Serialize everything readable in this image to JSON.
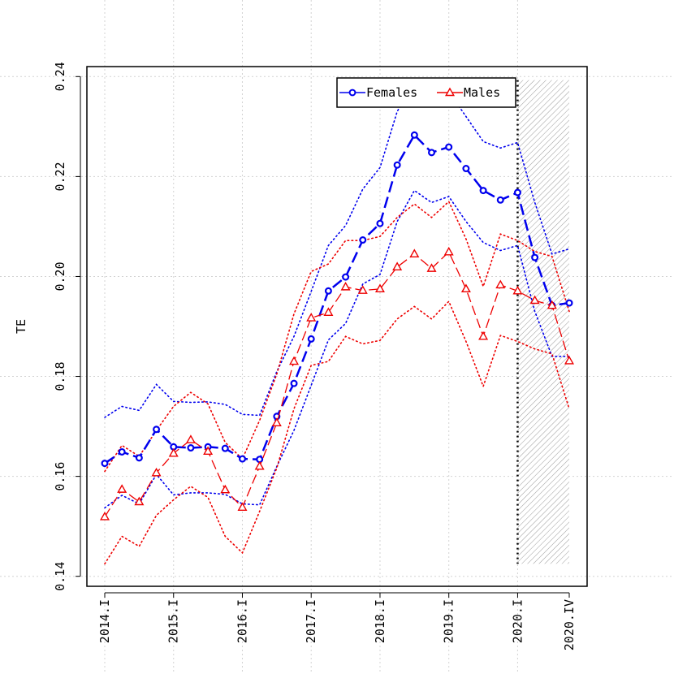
{
  "chart_data": {
    "type": "line",
    "title": "",
    "xlabel": "",
    "ylabel": "TE",
    "ylim": [
      0.138,
      0.242
    ],
    "yticks": [
      0.14,
      0.16,
      0.18,
      0.2,
      0.22,
      0.24
    ],
    "ytick_labels": [
      "0.14",
      "0.16",
      "0.18",
      "0.20",
      "0.22",
      "0.24"
    ],
    "x": [
      "2014.I",
      "2014.II",
      "2014.III",
      "2014.IV",
      "2015.I",
      "2015.II",
      "2015.III",
      "2015.IV",
      "2016.I",
      "2016.II",
      "2016.III",
      "2016.IV",
      "2017.I",
      "2017.II",
      "2017.III",
      "2017.IV",
      "2018.I",
      "2018.II",
      "2018.III",
      "2018.IV",
      "2019.I",
      "2019.II",
      "2019.III",
      "2019.IV",
      "2020.I",
      "2020.II",
      "2020.III",
      "2020.IV"
    ],
    "xtick_labels": [
      "2014.I",
      "2015.I",
      "2016.I",
      "2017.I",
      "2018.I",
      "2019.I",
      "2020.I",
      "2020.IV"
    ],
    "grid": true,
    "legend_position": "top-center",
    "forecast_start": "2020.I",
    "forecast_band": [
      0.1425,
      0.2393
    ],
    "series": [
      {
        "name": "Females",
        "color": "#0000ee",
        "marker": "circle",
        "values": [
          0.1626,
          0.1649,
          0.1637,
          0.1694,
          0.1659,
          0.1657,
          0.1659,
          0.1656,
          0.1635,
          0.1634,
          0.172,
          0.1786,
          0.1875,
          0.1971,
          0.1999,
          0.2073,
          0.2106,
          0.2223,
          0.2283,
          0.2248,
          0.2259,
          0.2216,
          0.2172,
          0.2153,
          0.2168,
          0.2038,
          0.1942,
          0.1947
        ],
        "upper": [
          0.1718,
          0.174,
          0.1732,
          0.1784,
          0.175,
          0.1748,
          0.1749,
          0.1744,
          0.1724,
          0.1722,
          0.181,
          0.188,
          0.197,
          0.2062,
          0.2102,
          0.2175,
          0.2218,
          0.233,
          0.239,
          0.235,
          0.237,
          0.232,
          0.227,
          0.2257,
          0.2268,
          0.2148,
          0.2045,
          0.2055
        ],
        "lower": [
          0.1537,
          0.1562,
          0.1545,
          0.1604,
          0.1563,
          0.1567,
          0.1567,
          0.1564,
          0.1545,
          0.1543,
          0.162,
          0.1692,
          0.1782,
          0.1873,
          0.1906,
          0.1985,
          0.2004,
          0.211,
          0.2172,
          0.2148,
          0.216,
          0.211,
          0.2068,
          0.2052,
          0.2062,
          0.193,
          0.184,
          0.184
        ]
      },
      {
        "name": "Males",
        "color": "#ee0000",
        "marker": "triangle",
        "values": [
          0.1519,
          0.1574,
          0.1549,
          0.1607,
          0.1646,
          0.1673,
          0.165,
          0.1573,
          0.1538,
          0.162,
          0.1707,
          0.183,
          0.1917,
          0.1928,
          0.1979,
          0.1972,
          0.1975,
          0.2019,
          0.2045,
          0.2016,
          0.2049,
          0.1975,
          0.188,
          0.1983,
          0.1971,
          0.1952,
          0.1942,
          0.1831
        ],
        "upper": [
          0.161,
          0.1662,
          0.164,
          0.1692,
          0.174,
          0.1768,
          0.1745,
          0.1668,
          0.1635,
          0.1712,
          0.1805,
          0.1925,
          0.201,
          0.2025,
          0.2072,
          0.2072,
          0.208,
          0.2118,
          0.2145,
          0.2118,
          0.215,
          0.2075,
          0.198,
          0.2085,
          0.2072,
          0.205,
          0.204,
          0.193
        ],
        "lower": [
          0.1425,
          0.148,
          0.146,
          0.1522,
          0.1553,
          0.158,
          0.1558,
          0.148,
          0.1447,
          0.153,
          0.1617,
          0.1735,
          0.1822,
          0.183,
          0.188,
          0.1865,
          0.1872,
          0.1915,
          0.194,
          0.1915,
          0.195,
          0.187,
          0.178,
          0.1882,
          0.187,
          0.1855,
          0.1845,
          0.1735
        ]
      }
    ]
  }
}
